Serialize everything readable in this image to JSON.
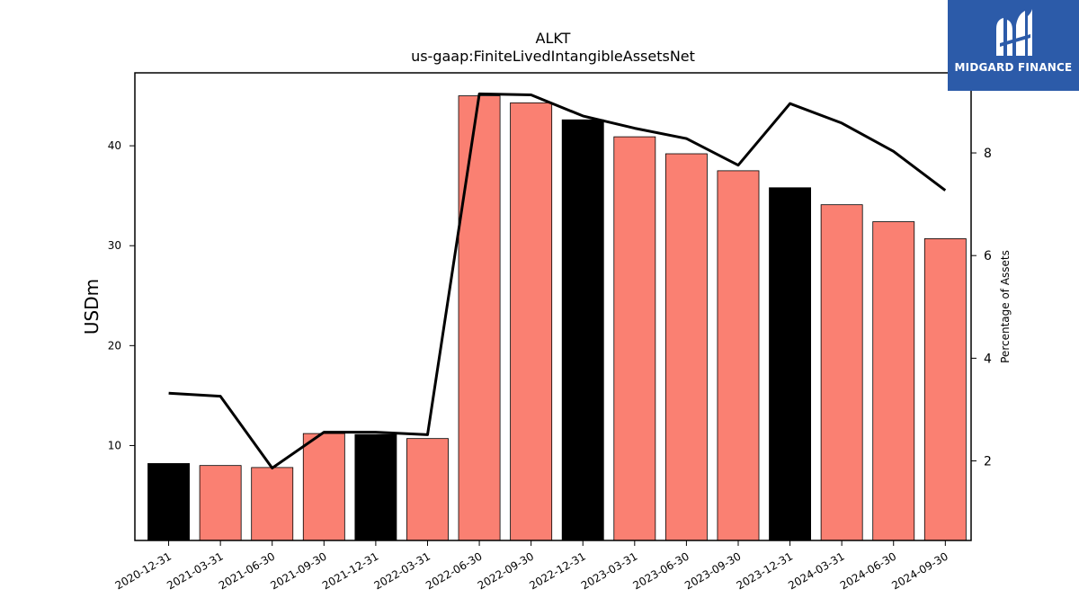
{
  "chart_data": {
    "type": "bar",
    "title": "ALKT",
    "subtitle": "us-gaap:FiniteLivedIntangibleAssetsNet",
    "ylabel": "USDm",
    "y2label": "Percentage of Assets",
    "categories": [
      "2020-12-31",
      "2021-03-31",
      "2021-06-30",
      "2021-09-30",
      "2021-12-31",
      "2022-03-31",
      "2022-06-30",
      "2022-09-30",
      "2022-12-31",
      "2023-03-31",
      "2023-06-30",
      "2023-09-30",
      "2023-12-31",
      "2024-03-31",
      "2024-06-30",
      "2024-09-30"
    ],
    "series": [
      {
        "type": "bar",
        "values": [
          8.2,
          8.0,
          7.8,
          11.2,
          11.1,
          10.7,
          45.0,
          44.3,
          42.6,
          40.9,
          39.2,
          37.5,
          35.8,
          34.1,
          32.4,
          30.7
        ],
        "colors": [
          "#000000",
          "#fa8072",
          "#fa8072",
          "#fa8072",
          "#000000",
          "#fa8072",
          "#fa8072",
          "#fa8072",
          "#000000",
          "#fa8072",
          "#fa8072",
          "#fa8072",
          "#000000",
          "#fa8072",
          "#fa8072",
          "#fa8072"
        ]
      },
      {
        "type": "line",
        "axis": "right",
        "values": [
          3.32,
          3.26,
          1.86,
          2.56,
          2.56,
          2.51,
          9.15,
          9.13,
          8.72,
          8.48,
          8.28,
          7.76,
          8.96,
          8.58,
          8.03,
          7.27
        ],
        "color": "#000000"
      }
    ],
    "ylim": [
      0.5,
      47.3
    ],
    "yticks": [
      10,
      20,
      30,
      40
    ],
    "y2lim": [
      0.45,
      9.56
    ],
    "y2ticks": [
      2,
      4,
      6,
      8
    ],
    "grid": false,
    "legend": "none"
  },
  "logo": {
    "text": "MIDGARD FINANCE",
    "color": "#2c5ba9"
  }
}
